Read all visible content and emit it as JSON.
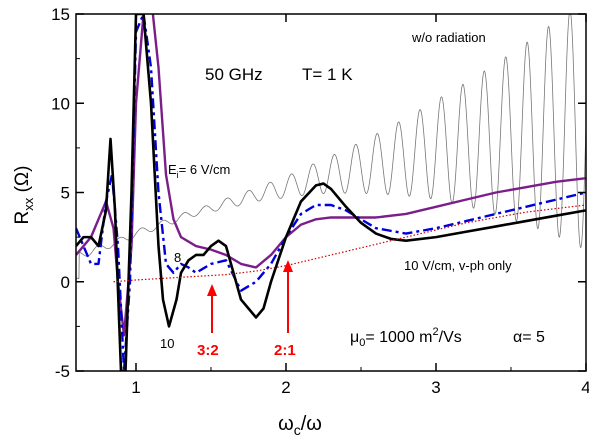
{
  "chart_data": {
    "type": "line",
    "xlabel_main": "ω",
    "xlabel_sub": "c",
    "xlabel_tail": "/ω",
    "ylabel_main": "R",
    "ylabel_sub": "xx",
    "ylabel_tail": " (Ω)",
    "xlim": [
      0.6,
      4.0
    ],
    "ylim": [
      -5,
      15
    ],
    "xticks": [
      1,
      2,
      3,
      4
    ],
    "yticks": [
      -5,
      0,
      5,
      10,
      15
    ],
    "grid": false,
    "annotations": {
      "freq": "50 GHz",
      "temp": "T= 1 K",
      "no_radiation": "w/o radiation",
      "field_main": "E",
      "field_sub": "i",
      "field_tail": "= 6 V/cm",
      "label_8": "8",
      "label_10": "10",
      "vph_only": "10 V/cm, v-ph only",
      "ratio_32": "3:2",
      "ratio_21": "2:1",
      "mobility_pre": "μ",
      "mobility_sub": "0",
      "mobility_mid": "= 1000 m",
      "mobility_sup": "2",
      "mobility_post": "/Vs",
      "alpha": "α= 5"
    },
    "colors": {
      "dark_field": "#000000",
      "oscillation": "#777777",
      "field_6": "#7b1e8a",
      "field_8": "#0000dd",
      "field_10": "#000000",
      "vph_only": "#cc0000",
      "arrows": "#ff0000"
    },
    "series": [
      {
        "style": "thin-gray",
        "x": [
          0.62,
          0.7,
          0.8,
          0.9,
          1.0,
          1.1,
          1.2,
          1.3,
          1.4,
          1.5,
          1.6,
          1.7,
          1.8,
          1.9,
          2.0,
          2.2,
          2.4,
          2.6,
          2.8,
          3.0,
          3.2,
          3.4,
          3.6,
          3.8,
          3.9,
          4.0
        ],
        "y": [
          1.5,
          1.7,
          2.0,
          2.3,
          2.7,
          3.0,
          3.3,
          3.6,
          3.9,
          4.1,
          4.4,
          4.6,
          4.9,
          5.1,
          5.3,
          5.8,
          6.2,
          6.6,
          7.0,
          7.4,
          7.7,
          8.0,
          8.3,
          8.6,
          8.7,
          8.8
        ]
      },
      {
        "style": "purple",
        "x": [
          0.6,
          0.65,
          0.7,
          0.75,
          0.8,
          0.85,
          0.88,
          0.92,
          0.97,
          1.0,
          1.05,
          1.1,
          1.15,
          1.2,
          1.25,
          1.3,
          1.4,
          1.5,
          1.6,
          1.7,
          1.8,
          1.9,
          2.0,
          2.1,
          2.2,
          2.3,
          2.4,
          2.5,
          2.6,
          2.8,
          3.0,
          3.2,
          3.4,
          3.6,
          3.8,
          4.0
        ],
        "y": [
          1.5,
          2.0,
          2.5,
          3.5,
          4.5,
          3.0,
          0.0,
          -3.0,
          2.0,
          10.0,
          15.0,
          16.0,
          12.0,
          6.0,
          3.5,
          2.5,
          2.0,
          1.8,
          1.5,
          1.0,
          0.8,
          1.5,
          2.5,
          3.2,
          3.5,
          3.6,
          3.6,
          3.6,
          3.6,
          3.8,
          4.2,
          4.6,
          5.0,
          5.3,
          5.6,
          5.8
        ]
      },
      {
        "style": "blue-dashdot",
        "x": [
          0.6,
          0.65,
          0.7,
          0.75,
          0.8,
          0.84,
          0.88,
          0.92,
          0.96,
          1.0,
          1.05,
          1.1,
          1.15,
          1.2,
          1.25,
          1.3,
          1.35,
          1.4,
          1.5,
          1.6,
          1.7,
          1.8,
          1.9,
          2.0,
          2.1,
          2.2,
          2.3,
          2.4,
          2.5,
          2.6,
          2.8,
          3.0,
          3.2,
          3.4,
          3.6,
          3.8,
          4.0
        ],
        "y": [
          3.0,
          2.0,
          1.0,
          1.0,
          4.5,
          6.0,
          2.0,
          -5.0,
          0.0,
          14.0,
          15.0,
          12.0,
          5.0,
          1.0,
          0.5,
          1.0,
          0.8,
          0.5,
          1.0,
          1.2,
          -0.5,
          0.0,
          1.0,
          2.5,
          3.8,
          4.3,
          4.3,
          4.0,
          3.5,
          3.0,
          2.7,
          3.0,
          3.4,
          3.8,
          4.2,
          4.6,
          5.0
        ]
      },
      {
        "style": "black-thick",
        "x": [
          0.6,
          0.65,
          0.7,
          0.75,
          0.8,
          0.83,
          0.86,
          0.9,
          0.93,
          0.97,
          1.0,
          1.05,
          1.1,
          1.15,
          1.18,
          1.22,
          1.27,
          1.3,
          1.35,
          1.4,
          1.45,
          1.5,
          1.55,
          1.6,
          1.65,
          1.7,
          1.75,
          1.8,
          1.85,
          1.9,
          2.0,
          2.1,
          2.2,
          2.25,
          2.3,
          2.4,
          2.5,
          2.6,
          2.7,
          2.8,
          3.0,
          3.2,
          3.4,
          3.6,
          3.8,
          4.0
        ],
        "y": [
          2.0,
          2.5,
          2.5,
          2.0,
          4.0,
          8.0,
          4.0,
          -5.0,
          -5.0,
          5.0,
          15.0,
          15.0,
          10.0,
          2.0,
          -1.0,
          -2.5,
          -1.0,
          0.5,
          1.2,
          1.5,
          1.5,
          2.0,
          2.3,
          2.0,
          0.5,
          -1.0,
          -1.5,
          -2.0,
          -1.5,
          0.0,
          2.5,
          4.5,
          5.4,
          5.5,
          5.2,
          4.2,
          3.3,
          2.7,
          2.4,
          2.3,
          2.5,
          2.8,
          3.1,
          3.4,
          3.7,
          4.0
        ]
      },
      {
        "style": "red-dotted",
        "x": [
          0.85,
          1.0,
          1.2,
          1.4,
          1.6,
          1.8,
          2.0,
          2.2,
          2.4,
          2.6,
          2.8,
          3.0,
          3.2,
          3.4,
          3.6,
          3.8,
          4.0
        ],
        "y": [
          0.0,
          0.1,
          0.2,
          0.3,
          0.4,
          0.6,
          0.9,
          1.3,
          1.7,
          2.1,
          2.5,
          2.9,
          3.3,
          3.6,
          3.9,
          4.1,
          4.3
        ]
      }
    ]
  }
}
